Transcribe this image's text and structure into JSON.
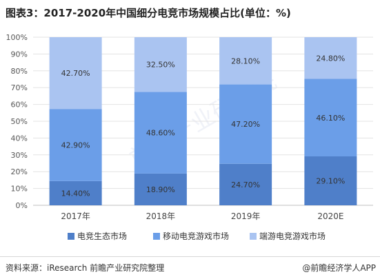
{
  "header": {
    "title": "图表3：2017-2020年中国细分电竞市场规模占比(单位：%)"
  },
  "footer": {
    "source": "资料来源：iResearch 前瞻产业研究院整理",
    "brand": "@前瞻经济学人APP"
  },
  "watermark": {
    "text": "前瞻产业研究院"
  },
  "chart_data": {
    "type": "bar",
    "stacked": true,
    "title": "图表3：2017-2020年中国细分电竞市场规模占比(单位：%)",
    "categories": [
      "2017年",
      "2018年",
      "2019年",
      "2020E"
    ],
    "series": [
      {
        "name": "电竞生态市场",
        "values": [
          14.4,
          18.9,
          24.7,
          29.1
        ],
        "labels": [
          "14.40%",
          "18.90%",
          "24.70%",
          "29.10%"
        ],
        "color": "#4f7fc9"
      },
      {
        "name": "移动电竞游戏市场",
        "values": [
          42.9,
          48.6,
          47.2,
          46.1
        ],
        "labels": [
          "42.90%",
          "48.60%",
          "47.20%",
          "46.10%"
        ],
        "color": "#6b9ee8"
      },
      {
        "name": "端游电竞游戏市场",
        "values": [
          42.7,
          32.5,
          28.1,
          24.8
        ],
        "labels": [
          "42.70%",
          "32.50%",
          "28.10%",
          "24.80%"
        ],
        "color": "#aac4f1"
      }
    ],
    "yticks": [
      "0%",
      "10%",
      "20%",
      "30%",
      "40%",
      "50%",
      "60%",
      "70%",
      "80%",
      "90%",
      "100%"
    ],
    "ylim": [
      0,
      100
    ],
    "grid": true,
    "legend": "bottom"
  }
}
